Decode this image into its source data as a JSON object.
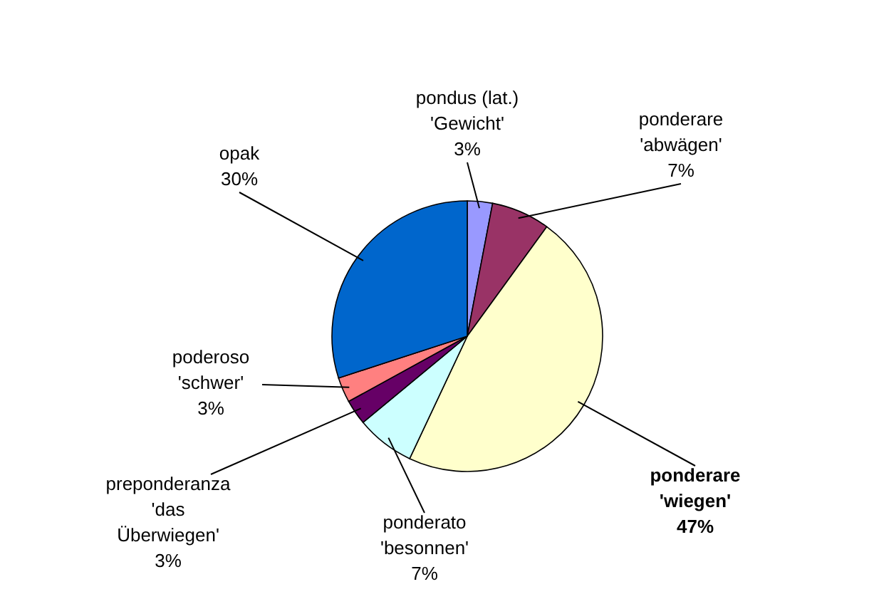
{
  "chart_data": {
    "type": "pie",
    "categories": [
      "pondus (lat.)\n'Gewicht'",
      "ponderare\n'abwägen'",
      "ponderare\n'wiegen'",
      "ponderato\n'besonnen'",
      "preponderanza\n'das\nÜberwiegen'",
      "poderoso\n'schwer'",
      "opak"
    ],
    "values": [
      3,
      7,
      47,
      7,
      3,
      3,
      30
    ],
    "colors": [
      "#9999ff",
      "#993366",
      "#ffffcc",
      "#ccffff",
      "#660066",
      "#ff8080",
      "#0066cc"
    ],
    "value_labels": [
      "3%",
      "7%",
      "47%",
      "7%",
      "3%",
      "3%",
      "30%"
    ],
    "legend": false
  }
}
